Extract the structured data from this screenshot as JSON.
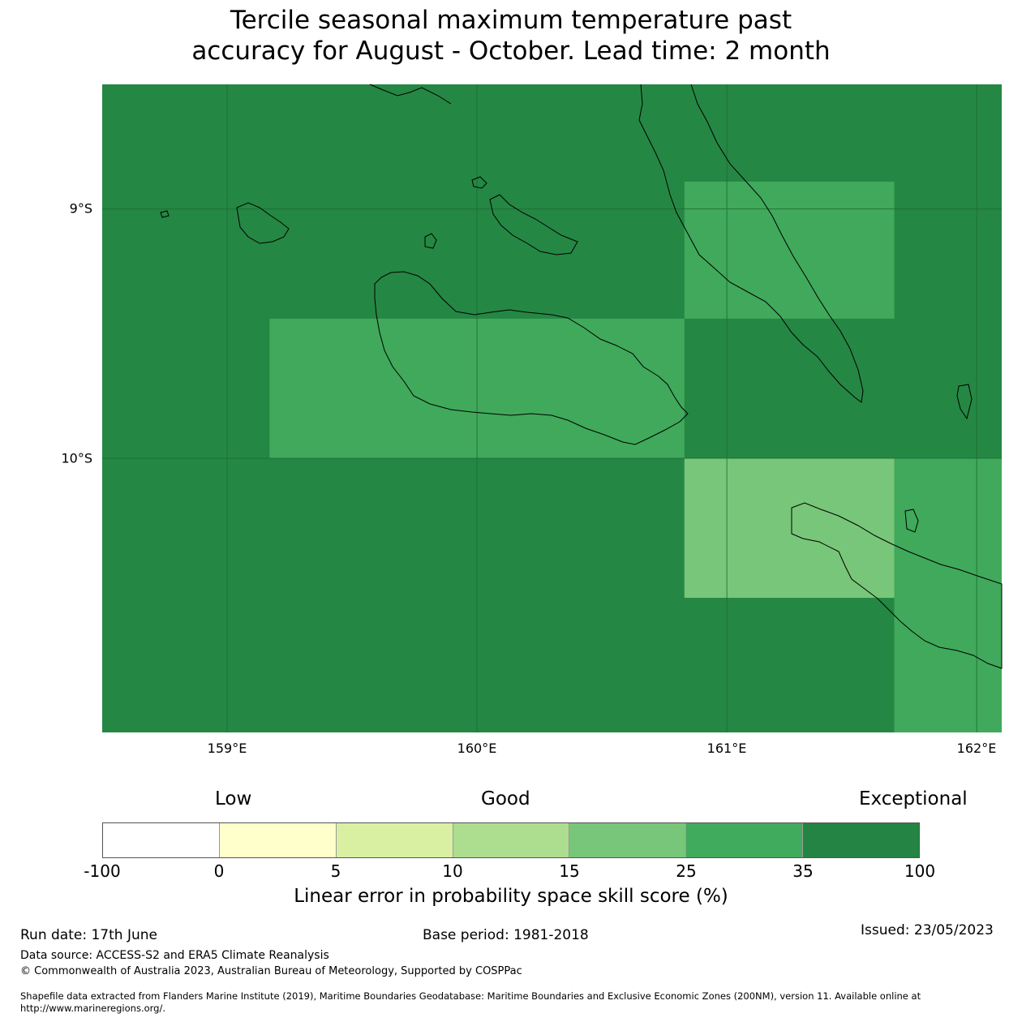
{
  "title": {
    "line1": "Tercile seasonal maximum temperature past",
    "line2": "accuracy for August - October. Lead time: 2 month"
  },
  "map": {
    "lat_ticks": [
      "9°S",
      "10°S"
    ],
    "lon_ticks": [
      "159°E",
      "160°E",
      "161°E",
      "162°E"
    ],
    "lon_range": [
      158.5,
      162.1
    ],
    "lat_range": [
      -11.1,
      -8.5
    ],
    "background_color": "#258744",
    "grid_cells": [
      {
        "lon": [
          160.83,
          161.67
        ],
        "lat": [
          -8.89,
          -9.44
        ],
        "color": "#40a95b",
        "category": "25-35"
      },
      {
        "lon": [
          159.17,
          160.83
        ],
        "lat": [
          -9.44,
          -10.0
        ],
        "color": "#40a95b",
        "category": "25-35"
      },
      {
        "lon": [
          160.83,
          161.67
        ],
        "lat": [
          -10.0,
          -10.56
        ],
        "color": "#78c679",
        "category": "15-25"
      },
      {
        "lon": [
          161.67,
          162.1
        ],
        "lat": [
          -10.0,
          -11.1
        ],
        "color": "#40a95b",
        "category": "25-35"
      }
    ]
  },
  "legend": {
    "categories": [
      "Low",
      "Good",
      "Exceptional"
    ],
    "ticks": [
      "-100",
      "0",
      "5",
      "10",
      "15",
      "25",
      "35",
      "100"
    ],
    "colors": [
      "#ffffff",
      "#ffffcc",
      "#d9f0a3",
      "#addd8e",
      "#78c679",
      "#41ab5d",
      "#238443"
    ],
    "title": "Linear error in probability space skill score (%)"
  },
  "footer": {
    "run_date": "Run date: 17th June",
    "base_period": "Base period: 1981-2018",
    "issued": "Issued: 23/05/2023",
    "data_source": "Data source: ACCESS-S2 and ERA5 Climate Reanalysis",
    "copyright": "© Commonwealth of Australia 2023, Australian Bureau of Meteorology, Supported by COSPPac",
    "shapefile": "Shapefile data extracted from Flanders Marine Institute (2019), Maritime Boundaries Geodatabase: Maritime Boundaries and Exclusive Economic Zones (200NM), version 11. Available online at",
    "url": "http://www.marineregions.org/."
  }
}
